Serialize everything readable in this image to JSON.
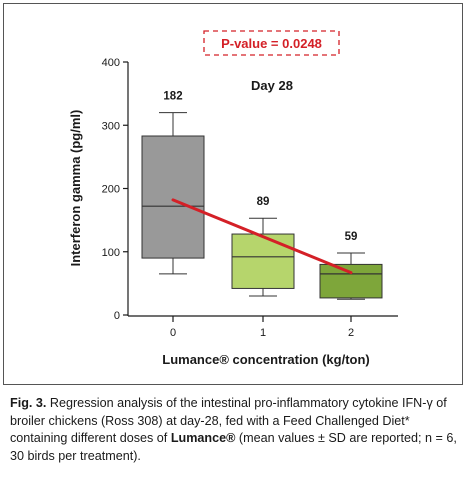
{
  "chart_data": {
    "type": "box",
    "title": "Day 28",
    "annotation": "P-value = 0.0248",
    "xlabel": "Lumance® concentration (kg/ton)",
    "ylabel": "Interferon gamma (pg/ml)",
    "ylim": [
      0,
      400
    ],
    "yticks": [
      "0",
      "100",
      "200",
      "300",
      "400"
    ],
    "categories": [
      "0",
      "1",
      "2"
    ],
    "boxes": [
      {
        "category": "0",
        "whisker_low": 65,
        "q1": 90,
        "median": 172,
        "q3": 283,
        "whisker_high": 320,
        "mean_label": "182",
        "color": "#999999"
      },
      {
        "category": "1",
        "whisker_low": 30,
        "q1": 42,
        "median": 92,
        "q3": 128,
        "whisker_high": 153,
        "mean_label": "89",
        "color": "#b6d56c"
      },
      {
        "category": "2",
        "whisker_low": 25,
        "q1": 27,
        "median": 65,
        "q3": 80,
        "whisker_high": 98,
        "mean_label": "59",
        "color": "#7ea63a"
      }
    ],
    "regression_line": {
      "x_start": "0",
      "y_start": 182,
      "x_end": "2",
      "y_end": 67,
      "color": "#d42027"
    },
    "grid": false
  },
  "caption": {
    "label": "Fig. 3.",
    "text_part1": " Regression analysis of the intestinal pro-inflammatory cytokine IFN-γ of broiler chickens (Ross 308) at day-28, fed with a Feed Challenged Diet* containing different doses of ",
    "product": "Lumance®",
    "text_part2": " (mean values ± SD are reported; n = 6, 30 birds per treatment)."
  },
  "colors": {
    "annotation_border": "#d42027",
    "annotation_text": "#d42027",
    "axis": "#1a1a1a"
  }
}
